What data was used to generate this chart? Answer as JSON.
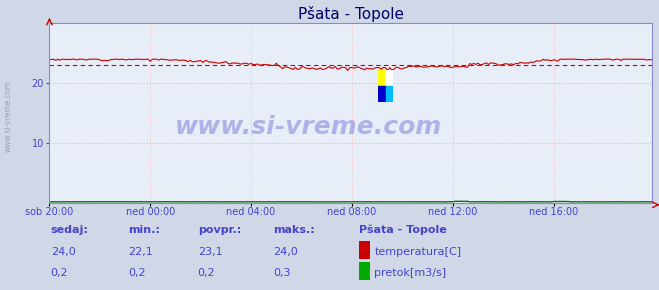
{
  "title": "Pšata - Topole",
  "bg_color": "#d0d8e8",
  "plot_bg_color": "#e8eef8",
  "grid_color": "#ffaaaa",
  "grid_color2": "#ddddff",
  "axis_color": "#cc0000",
  "spine_color": "#8888cc",
  "x_labels": [
    "sob 20:00",
    "ned 00:00",
    "ned 04:00",
    "ned 08:00",
    "ned 12:00",
    "ned 16:00"
  ],
  "x_ticks": [
    0,
    48,
    96,
    144,
    192,
    240
  ],
  "ylim": [
    0,
    30
  ],
  "yticks": [
    10,
    20
  ],
  "n_points": 288,
  "temp_min": 22.1,
  "temp_max": 24.0,
  "temp_avg": 23.1,
  "temp_color": "#cc0000",
  "temp_avg_color": "#cc0000",
  "flow_color": "#007700",
  "flow_min": 0.2,
  "flow_max": 0.3,
  "flow_avg": 0.2,
  "watermark": "www.si-vreme.com",
  "watermark_color": "#4444cc",
  "watermark_alpha": 0.35,
  "watermark_fontsize": 18,
  "footer_color": "#4444cc",
  "title_color": "#000066",
  "title_fontsize": 11,
  "tick_fontsize": 7,
  "footer_fontsize": 8,
  "left_label_color": "#8888aa",
  "left_label": "www.si-vreme.com"
}
